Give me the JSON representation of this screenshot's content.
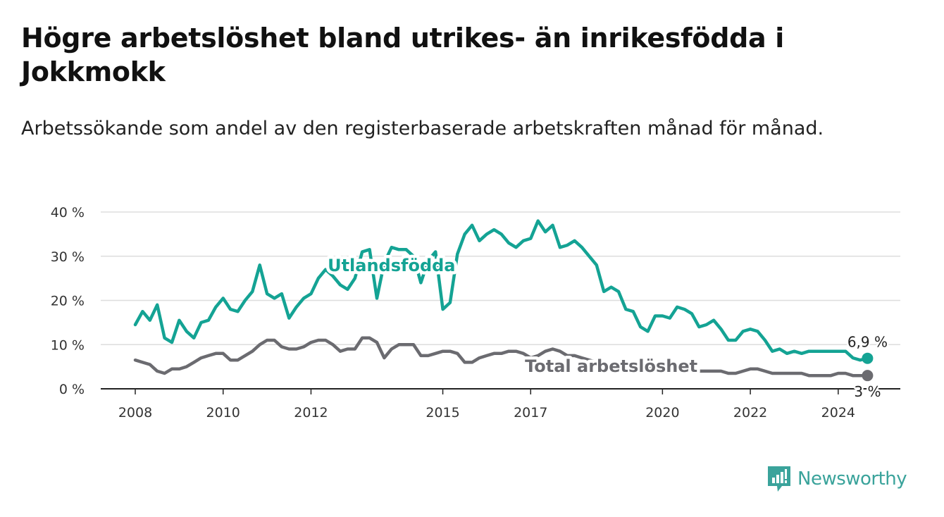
{
  "title": "Högre arbetslöshet bland utrikes- än inrikesfödda i Jokkmokk",
  "subtitle": "Arbetssökande som andel av den registerbaserade arbetskraften månad för månad.",
  "brand": {
    "name": "Newsworthy",
    "icon": "newsworthy-chart-icon",
    "color": "#3aa39b"
  },
  "colors": {
    "foreign_born": "#14a394",
    "total": "#6b6b70",
    "grid": "#dddddd",
    "axis": "#222222"
  },
  "chart_data": {
    "type": "line",
    "title": "Högre arbetslöshet bland utrikes- än inrikesfödda i Jokkmokk",
    "subtitle": "Arbetssökande som andel av den registerbaserade arbetskraften månad för månad.",
    "xlabel": "",
    "ylabel": "",
    "x_ticks": [
      "2008",
      "2010",
      "2012",
      "2015",
      "2017",
      "2020",
      "2022",
      "2024"
    ],
    "y_ticks": [
      "0 %",
      "10 %",
      "20 %",
      "30 %",
      "40 %"
    ],
    "ylim": [
      0,
      40
    ],
    "xlim": [
      "2008-01",
      "2024-12"
    ],
    "grid": "horizontal",
    "legend": "inline labels",
    "series": [
      {
        "name": "Utlandsfödda",
        "color": "#14a394",
        "end_label": "6,9 %",
        "points": [
          [
            "2008-01",
            14.5
          ],
          [
            "2008-03",
            17.5
          ],
          [
            "2008-05",
            15.5
          ],
          [
            "2008-07",
            19
          ],
          [
            "2008-09",
            11.5
          ],
          [
            "2008-11",
            10.5
          ],
          [
            "2009-01",
            15.5
          ],
          [
            "2009-03",
            13
          ],
          [
            "2009-05",
            11.5
          ],
          [
            "2009-07",
            15
          ],
          [
            "2009-09",
            15.5
          ],
          [
            "2009-11",
            18.5
          ],
          [
            "2010-01",
            20.5
          ],
          [
            "2010-03",
            18
          ],
          [
            "2010-05",
            17.5
          ],
          [
            "2010-07",
            20
          ],
          [
            "2010-09",
            22
          ],
          [
            "2010-11",
            28
          ],
          [
            "2011-01",
            21.5
          ],
          [
            "2011-03",
            20.5
          ],
          [
            "2011-05",
            21.5
          ],
          [
            "2011-07",
            16
          ],
          [
            "2011-09",
            18.5
          ],
          [
            "2011-11",
            20.5
          ],
          [
            "2012-01",
            21.5
          ],
          [
            "2012-03",
            25
          ],
          [
            "2012-05",
            27
          ],
          [
            "2012-07",
            25.5
          ],
          [
            "2012-09",
            23.5
          ],
          [
            "2012-11",
            22.5
          ],
          [
            "2013-01",
            25
          ],
          [
            "2013-03",
            31
          ],
          [
            "2013-05",
            31.5
          ],
          [
            "2013-07",
            20.5
          ],
          [
            "2013-09",
            28.5
          ],
          [
            "2013-11",
            32
          ],
          [
            "2014-01",
            31.5
          ],
          [
            "2014-03",
            31.5
          ],
          [
            "2014-05",
            30
          ],
          [
            "2014-07",
            24
          ],
          [
            "2014-09",
            29
          ],
          [
            "2014-11",
            31
          ],
          [
            "2015-01",
            18
          ],
          [
            "2015-03",
            19.5
          ],
          [
            "2015-05",
            30.5
          ],
          [
            "2015-07",
            35
          ],
          [
            "2015-09",
            37
          ],
          [
            "2015-11",
            33.5
          ],
          [
            "2016-01",
            35
          ],
          [
            "2016-03",
            36
          ],
          [
            "2016-05",
            35
          ],
          [
            "2016-07",
            33
          ],
          [
            "2016-09",
            32
          ],
          [
            "2016-11",
            33.5
          ],
          [
            "2017-01",
            34
          ],
          [
            "2017-03",
            38
          ],
          [
            "2017-05",
            35.5
          ],
          [
            "2017-07",
            37
          ],
          [
            "2017-09",
            32
          ],
          [
            "2017-11",
            32.5
          ],
          [
            "2018-01",
            33.5
          ],
          [
            "2018-03",
            32
          ],
          [
            "2018-05",
            30
          ],
          [
            "2018-07",
            28
          ],
          [
            "2018-09",
            22
          ],
          [
            "2018-11",
            23
          ],
          [
            "2019-01",
            22
          ],
          [
            "2019-03",
            18
          ],
          [
            "2019-05",
            17.5
          ],
          [
            "2019-07",
            14
          ],
          [
            "2019-09",
            13
          ],
          [
            "2019-11",
            16.5
          ],
          [
            "2020-01",
            16.5
          ],
          [
            "2020-03",
            16
          ],
          [
            "2020-05",
            18.5
          ],
          [
            "2020-07",
            18
          ],
          [
            "2020-09",
            17
          ],
          [
            "2020-11",
            14
          ],
          [
            "2021-01",
            14.5
          ],
          [
            "2021-03",
            15.5
          ],
          [
            "2021-05",
            13.5
          ],
          [
            "2021-07",
            11
          ],
          [
            "2021-09",
            11
          ],
          [
            "2021-11",
            13
          ],
          [
            "2022-01",
            13.5
          ],
          [
            "2022-03",
            13
          ],
          [
            "2022-05",
            11
          ],
          [
            "2022-07",
            8.5
          ],
          [
            "2022-09",
            9
          ],
          [
            "2022-11",
            8
          ],
          [
            "2023-01",
            8.5
          ],
          [
            "2023-03",
            8
          ],
          [
            "2023-05",
            8.5
          ],
          [
            "2023-07",
            8.5
          ],
          [
            "2023-09",
            8.5
          ],
          [
            "2023-11",
            8.5
          ],
          [
            "2024-01",
            8.5
          ],
          [
            "2024-03",
            8.5
          ],
          [
            "2024-05",
            7
          ],
          [
            "2024-07",
            6.5
          ],
          [
            "2024-09",
            6.9
          ]
        ]
      },
      {
        "name": "Total arbetslöshet",
        "color": "#6b6b70",
        "end_label": "3 %",
        "points": [
          [
            "2008-01",
            6.5
          ],
          [
            "2008-03",
            6
          ],
          [
            "2008-05",
            5.5
          ],
          [
            "2008-07",
            4
          ],
          [
            "2008-09",
            3.5
          ],
          [
            "2008-11",
            4.5
          ],
          [
            "2009-01",
            4.5
          ],
          [
            "2009-03",
            5
          ],
          [
            "2009-05",
            6
          ],
          [
            "2009-07",
            7
          ],
          [
            "2009-09",
            7.5
          ],
          [
            "2009-11",
            8
          ],
          [
            "2010-01",
            8
          ],
          [
            "2010-03",
            6.5
          ],
          [
            "2010-05",
            6.5
          ],
          [
            "2010-07",
            7.5
          ],
          [
            "2010-09",
            8.5
          ],
          [
            "2010-11",
            10
          ],
          [
            "2011-01",
            11
          ],
          [
            "2011-03",
            11
          ],
          [
            "2011-05",
            9.5
          ],
          [
            "2011-07",
            9
          ],
          [
            "2011-09",
            9
          ],
          [
            "2011-11",
            9.5
          ],
          [
            "2012-01",
            10.5
          ],
          [
            "2012-03",
            11
          ],
          [
            "2012-05",
            11
          ],
          [
            "2012-07",
            10
          ],
          [
            "2012-09",
            8.5
          ],
          [
            "2012-11",
            9
          ],
          [
            "2013-01",
            9
          ],
          [
            "2013-03",
            11.5
          ],
          [
            "2013-05",
            11.5
          ],
          [
            "2013-07",
            10.5
          ],
          [
            "2013-09",
            7
          ],
          [
            "2013-11",
            9
          ],
          [
            "2014-01",
            10
          ],
          [
            "2014-03",
            10
          ],
          [
            "2014-05",
            10
          ],
          [
            "2014-07",
            7.5
          ],
          [
            "2014-09",
            7.5
          ],
          [
            "2014-11",
            8
          ],
          [
            "2015-01",
            8.5
          ],
          [
            "2015-03",
            8.5
          ],
          [
            "2015-05",
            8
          ],
          [
            "2015-07",
            6
          ],
          [
            "2015-09",
            6
          ],
          [
            "2015-11",
            7
          ],
          [
            "2016-01",
            7.5
          ],
          [
            "2016-03",
            8
          ],
          [
            "2016-05",
            8
          ],
          [
            "2016-07",
            8.5
          ],
          [
            "2016-09",
            8.5
          ],
          [
            "2016-11",
            8
          ],
          [
            "2017-01",
            7
          ],
          [
            "2017-03",
            7.5
          ],
          [
            "2017-05",
            8.5
          ],
          [
            "2017-07",
            9
          ],
          [
            "2017-09",
            8.5
          ],
          [
            "2017-11",
            7.5
          ],
          [
            "2018-01",
            7.5
          ],
          [
            "2018-03",
            7
          ],
          [
            "2018-05",
            6.5
          ],
          [
            "2018-07",
            6
          ],
          [
            "2018-09",
            5.5
          ],
          [
            "2018-11",
            5.5
          ],
          [
            "2019-01",
            5.5
          ],
          [
            "2019-03",
            5
          ],
          [
            "2019-05",
            5
          ],
          [
            "2019-07",
            4.5
          ],
          [
            "2019-09",
            4.5
          ],
          [
            "2019-11",
            4.5
          ],
          [
            "2020-01",
            4.5
          ],
          [
            "2020-03",
            4.5
          ],
          [
            "2020-05",
            5
          ],
          [
            "2020-07",
            4.5
          ],
          [
            "2020-09",
            4.5
          ],
          [
            "2020-11",
            4
          ],
          [
            "2021-01",
            4
          ],
          [
            "2021-03",
            4
          ],
          [
            "2021-05",
            4
          ],
          [
            "2021-07",
            3.5
          ],
          [
            "2021-09",
            3.5
          ],
          [
            "2021-11",
            4
          ],
          [
            "2022-01",
            4.5
          ],
          [
            "2022-03",
            4.5
          ],
          [
            "2022-05",
            4
          ],
          [
            "2022-07",
            3.5
          ],
          [
            "2022-09",
            3.5
          ],
          [
            "2022-11",
            3.5
          ],
          [
            "2023-01",
            3.5
          ],
          [
            "2023-03",
            3.5
          ],
          [
            "2023-05",
            3
          ],
          [
            "2023-07",
            3
          ],
          [
            "2023-09",
            3
          ],
          [
            "2023-11",
            3
          ],
          [
            "2024-01",
            3.5
          ],
          [
            "2024-03",
            3.5
          ],
          [
            "2024-05",
            3
          ],
          [
            "2024-07",
            3
          ],
          [
            "2024-09",
            3
          ]
        ]
      }
    ]
  }
}
